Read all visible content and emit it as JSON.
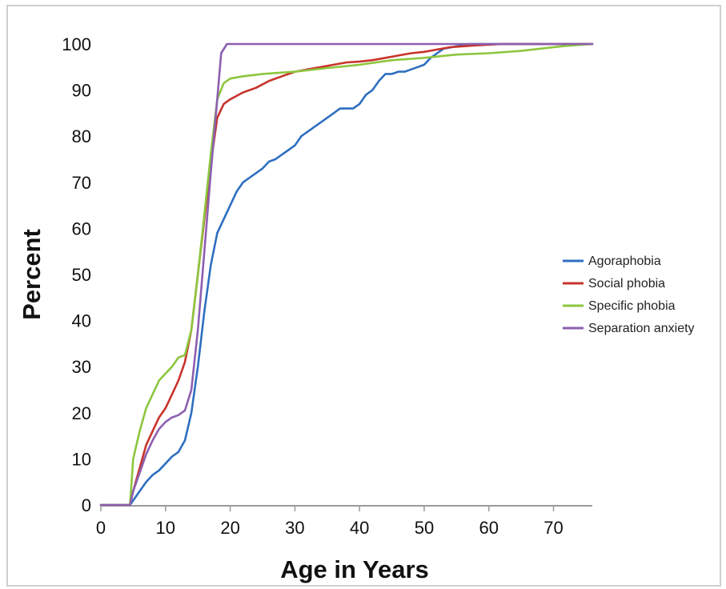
{
  "chart_data": {
    "type": "line",
    "xlabel": "Age in Years",
    "ylabel": "Percent",
    "xlim": [
      0,
      76
    ],
    "ylim": [
      0,
      100
    ],
    "xticks": [
      0,
      10,
      20,
      30,
      40,
      50,
      60,
      70
    ],
    "yticks": [
      0,
      10,
      20,
      30,
      40,
      50,
      60,
      70,
      80,
      90,
      100
    ],
    "grid": false,
    "legend_position": "right",
    "series": [
      {
        "name": "Agoraphobia",
        "color": "#2e6fc0",
        "points": [
          [
            0,
            0
          ],
          [
            4.5,
            0
          ],
          [
            5,
            1
          ],
          [
            6,
            3
          ],
          [
            7,
            5
          ],
          [
            8,
            6.5
          ],
          [
            9,
            7.5
          ],
          [
            10,
            9
          ],
          [
            11,
            10.5
          ],
          [
            12,
            11.5
          ],
          [
            13,
            14
          ],
          [
            14,
            20
          ],
          [
            15,
            30
          ],
          [
            16,
            42
          ],
          [
            17,
            52
          ],
          [
            18,
            59
          ],
          [
            19,
            62
          ],
          [
            20,
            65
          ],
          [
            21,
            68
          ],
          [
            22,
            70
          ],
          [
            23,
            71
          ],
          [
            24,
            72
          ],
          [
            25,
            73
          ],
          [
            26,
            74.5
          ],
          [
            27,
            75
          ],
          [
            28,
            76
          ],
          [
            29,
            77
          ],
          [
            30,
            78
          ],
          [
            31,
            80
          ],
          [
            32,
            81
          ],
          [
            33,
            82
          ],
          [
            34,
            83
          ],
          [
            35,
            84
          ],
          [
            36,
            85
          ],
          [
            37,
            86
          ],
          [
            38,
            86
          ],
          [
            39,
            86
          ],
          [
            40,
            87
          ],
          [
            41,
            89
          ],
          [
            42,
            90
          ],
          [
            43,
            92
          ],
          [
            44,
            93.5
          ],
          [
            45,
            93.5
          ],
          [
            46,
            94
          ],
          [
            47,
            94
          ],
          [
            48,
            94.5
          ],
          [
            49,
            95
          ],
          [
            50,
            95.5
          ],
          [
            51,
            97
          ],
          [
            52,
            98
          ],
          [
            53,
            99
          ],
          [
            55,
            99.5
          ],
          [
            57,
            100
          ],
          [
            76,
            100
          ]
        ]
      },
      {
        "name": "Social phobia",
        "color": "#c8332b",
        "points": [
          [
            0,
            0
          ],
          [
            4.5,
            0
          ],
          [
            5,
            3
          ],
          [
            6,
            8
          ],
          [
            7,
            13
          ],
          [
            8,
            16
          ],
          [
            9,
            19
          ],
          [
            10,
            21
          ],
          [
            11,
            24
          ],
          [
            12,
            27
          ],
          [
            13,
            31
          ],
          [
            14,
            38
          ],
          [
            15,
            50
          ],
          [
            16,
            62
          ],
          [
            17,
            74
          ],
          [
            18,
            84
          ],
          [
            19,
            87
          ],
          [
            20,
            88
          ],
          [
            22,
            89.5
          ],
          [
            24,
            90.5
          ],
          [
            26,
            92
          ],
          [
            28,
            93
          ],
          [
            30,
            94
          ],
          [
            32,
            94.5
          ],
          [
            34,
            95
          ],
          [
            36,
            95.5
          ],
          [
            38,
            96
          ],
          [
            40,
            96.2
          ],
          [
            42,
            96.5
          ],
          [
            44,
            97
          ],
          [
            46,
            97.5
          ],
          [
            48,
            98
          ],
          [
            50,
            98.3
          ],
          [
            52,
            98.8
          ],
          [
            54,
            99.3
          ],
          [
            58,
            99.7
          ],
          [
            62,
            100
          ],
          [
            76,
            100
          ]
        ]
      },
      {
        "name": "Specific phobia",
        "color": "#8cc63e",
        "points": [
          [
            0,
            0
          ],
          [
            4.5,
            0
          ],
          [
            5,
            10
          ],
          [
            6,
            16
          ],
          [
            7,
            21
          ],
          [
            8,
            24
          ],
          [
            9,
            27
          ],
          [
            10,
            28.5
          ],
          [
            11,
            30
          ],
          [
            12,
            32
          ],
          [
            13,
            32.5
          ],
          [
            14,
            38
          ],
          [
            15,
            50
          ],
          [
            16,
            63
          ],
          [
            17,
            76
          ],
          [
            18,
            88
          ],
          [
            19,
            91.5
          ],
          [
            20,
            92.5
          ],
          [
            22,
            93
          ],
          [
            25,
            93.5
          ],
          [
            30,
            94
          ],
          [
            35,
            94.8
          ],
          [
            40,
            95.5
          ],
          [
            45,
            96.5
          ],
          [
            50,
            97
          ],
          [
            55,
            97.7
          ],
          [
            60,
            98
          ],
          [
            65,
            98.5
          ],
          [
            70,
            99.3
          ],
          [
            72,
            99.6
          ],
          [
            76,
            100
          ]
        ]
      },
      {
        "name": "Separation anxiety",
        "color": "#8c5fb0",
        "points": [
          [
            0,
            0
          ],
          [
            4.5,
            0
          ],
          [
            5,
            3
          ],
          [
            6,
            7
          ],
          [
            7,
            11
          ],
          [
            8,
            14
          ],
          [
            9,
            16.5
          ],
          [
            10,
            18
          ],
          [
            11,
            19
          ],
          [
            12,
            19.5
          ],
          [
            13,
            20.5
          ],
          [
            14,
            25
          ],
          [
            15,
            38
          ],
          [
            16,
            55
          ],
          [
            17,
            72
          ],
          [
            18,
            88
          ],
          [
            18.6,
            98
          ],
          [
            19.5,
            100
          ],
          [
            76,
            100
          ]
        ]
      }
    ]
  }
}
